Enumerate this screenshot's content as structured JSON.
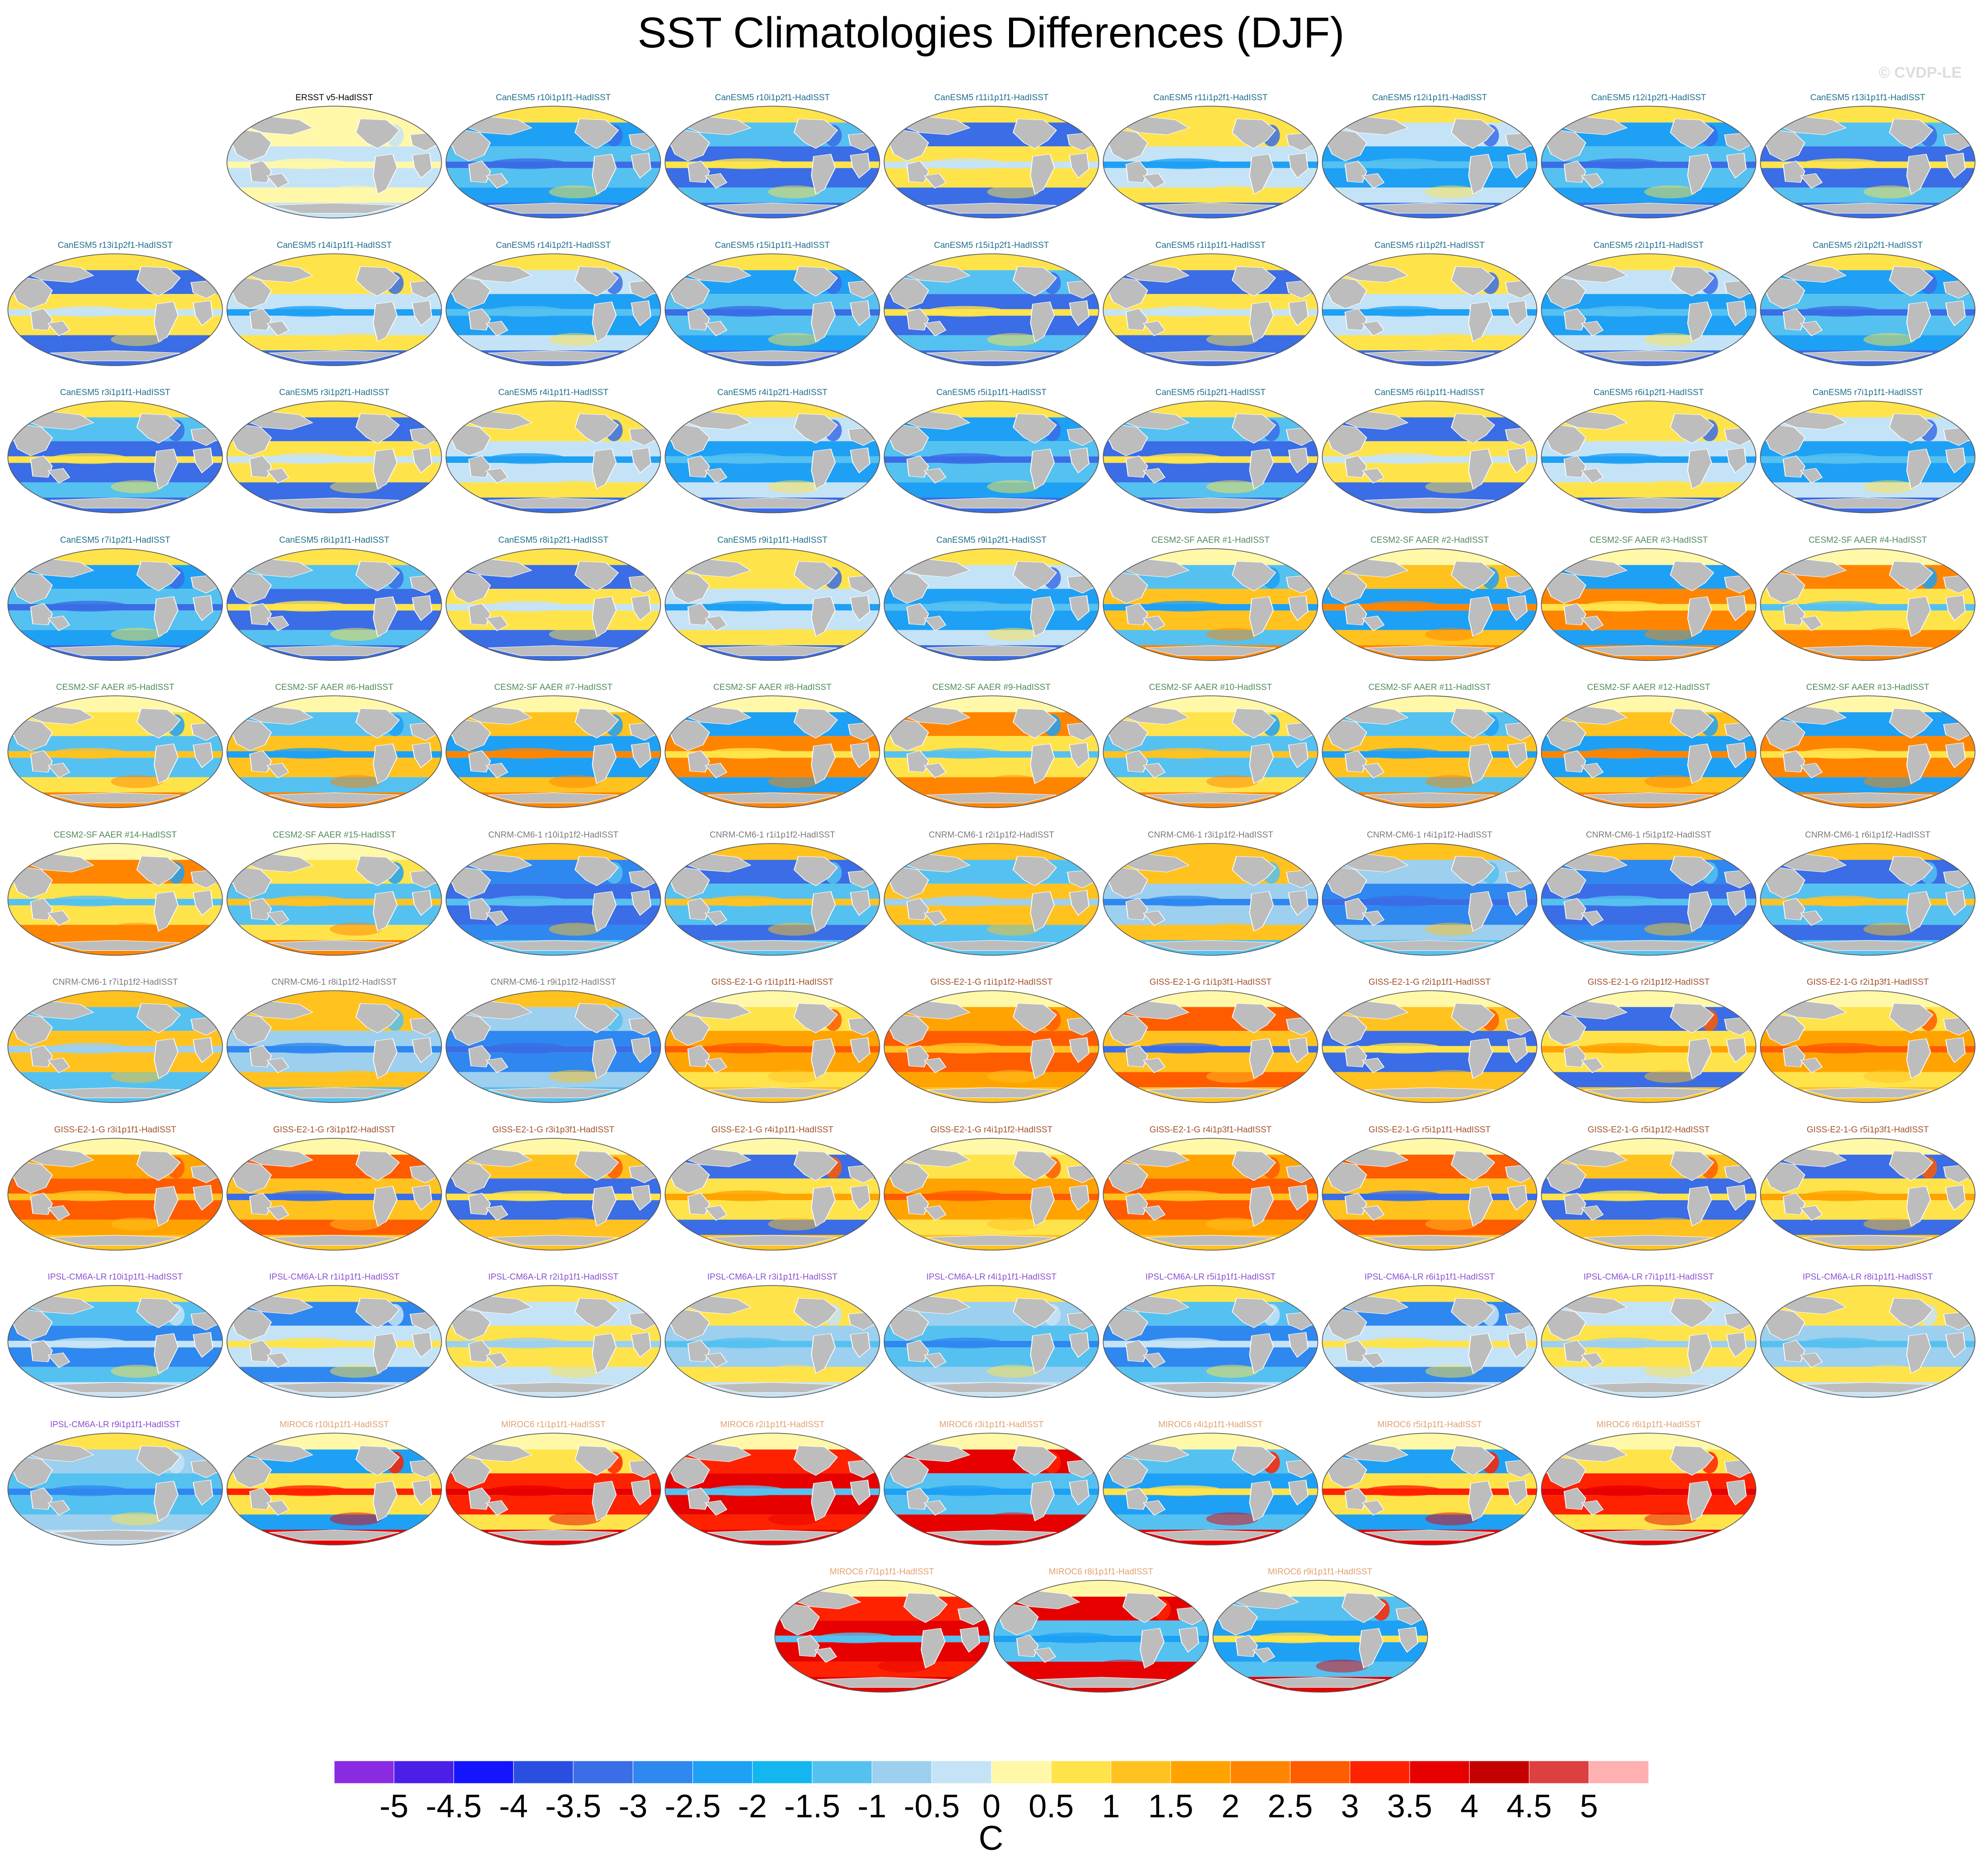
{
  "title": "SST Climatologies Differences (DJF)",
  "watermark": "© CVDP-LE",
  "chart_data": {
    "type": "heatmap",
    "title": "SST Climatologies Differences (DJF)",
    "colorbar": {
      "unit": "C",
      "ticks": [
        "-5",
        "-4.5",
        "-4",
        "-3.5",
        "-3",
        "-2.5",
        "-2",
        "-1.5",
        "-1",
        "-0.5",
        "0",
        "0.5",
        "1",
        "1.5",
        "2",
        "2.5",
        "3",
        "3.5",
        "4",
        "4.5",
        "5"
      ],
      "colors": [
        "#8a2be2",
        "#4b1fe8",
        "#1414ff",
        "#2a4fe0",
        "#3a6de6",
        "#2f87f0",
        "#1ea0f5",
        "#13b6ef",
        "#55c1f0",
        "#9dcfee",
        "#c5e3f6",
        "#fff8a8",
        "#ffe34a",
        "#ffc21f",
        "#ffa300",
        "#ff8500",
        "#ff5c00",
        "#ff2200",
        "#e60000",
        "#c40000",
        "#dd4040",
        "#ffb0b0"
      ]
    },
    "panels": [
      {
        "label": "ERSST v5-HadISST",
        "group": "ERSST"
      },
      {
        "label": "CanESM5 r10i1p1f1-HadISST",
        "group": "CanESM5"
      },
      {
        "label": "CanESM5 r10i1p2f1-HadISST",
        "group": "CanESM5"
      },
      {
        "label": "CanESM5 r11i1p1f1-HadISST",
        "group": "CanESM5"
      },
      {
        "label": "CanESM5 r11i1p2f1-HadISST",
        "group": "CanESM5"
      },
      {
        "label": "CanESM5 r12i1p1f1-HadISST",
        "group": "CanESM5"
      },
      {
        "label": "CanESM5 r12i1p2f1-HadISST",
        "group": "CanESM5"
      },
      {
        "label": "CanESM5 r13i1p1f1-HadISST",
        "group": "CanESM5"
      },
      {
        "label": "CanESM5 r13i1p2f1-HadISST",
        "group": "CanESM5"
      },
      {
        "label": "CanESM5 r14i1p1f1-HadISST",
        "group": "CanESM5"
      },
      {
        "label": "CanESM5 r14i1p2f1-HadISST",
        "group": "CanESM5"
      },
      {
        "label": "CanESM5 r15i1p1f1-HadISST",
        "group": "CanESM5"
      },
      {
        "label": "CanESM5 r15i1p2f1-HadISST",
        "group": "CanESM5"
      },
      {
        "label": "CanESM5 r1i1p1f1-HadISST",
        "group": "CanESM5"
      },
      {
        "label": "CanESM5 r1i1p2f1-HadISST",
        "group": "CanESM5"
      },
      {
        "label": "CanESM5 r2i1p1f1-HadISST",
        "group": "CanESM5"
      },
      {
        "label": "CanESM5 r2i1p2f1-HadISST",
        "group": "CanESM5"
      },
      {
        "label": "CanESM5 r3i1p1f1-HadISST",
        "group": "CanESM5"
      },
      {
        "label": "CanESM5 r3i1p2f1-HadISST",
        "group": "CanESM5"
      },
      {
        "label": "CanESM5 r4i1p1f1-HadISST",
        "group": "CanESM5"
      },
      {
        "label": "CanESM5 r4i1p2f1-HadISST",
        "group": "CanESM5"
      },
      {
        "label": "CanESM5 r5i1p1f1-HadISST",
        "group": "CanESM5"
      },
      {
        "label": "CanESM5 r5i1p2f1-HadISST",
        "group": "CanESM5"
      },
      {
        "label": "CanESM5 r6i1p1f1-HadISST",
        "group": "CanESM5"
      },
      {
        "label": "CanESM5 r6i1p2f1-HadISST",
        "group": "CanESM5"
      },
      {
        "label": "CanESM5 r7i1p1f1-HadISST",
        "group": "CanESM5"
      },
      {
        "label": "CanESM5 r7i1p2f1-HadISST",
        "group": "CanESM5"
      },
      {
        "label": "CanESM5 r8i1p1f1-HadISST",
        "group": "CanESM5"
      },
      {
        "label": "CanESM5 r8i1p2f1-HadISST",
        "group": "CanESM5"
      },
      {
        "label": "CanESM5 r9i1p1f1-HadISST",
        "group": "CanESM5"
      },
      {
        "label": "CanESM5 r9i1p2f1-HadISST",
        "group": "CanESM5"
      },
      {
        "label": "CESM2-SF AAER #1-HadISST",
        "group": "CESM2"
      },
      {
        "label": "CESM2-SF AAER #2-HadISST",
        "group": "CESM2"
      },
      {
        "label": "CESM2-SF AAER #3-HadISST",
        "group": "CESM2"
      },
      {
        "label": "CESM2-SF AAER #4-HadISST",
        "group": "CESM2"
      },
      {
        "label": "CESM2-SF AAER #5-HadISST",
        "group": "CESM2"
      },
      {
        "label": "CESM2-SF AAER #6-HadISST",
        "group": "CESM2"
      },
      {
        "label": "CESM2-SF AAER #7-HadISST",
        "group": "CESM2"
      },
      {
        "label": "CESM2-SF AAER #8-HadISST",
        "group": "CESM2"
      },
      {
        "label": "CESM2-SF AAER #9-HadISST",
        "group": "CESM2"
      },
      {
        "label": "CESM2-SF AAER #10-HadISST",
        "group": "CESM2"
      },
      {
        "label": "CESM2-SF AAER #11-HadISST",
        "group": "CESM2"
      },
      {
        "label": "CESM2-SF AAER #12-HadISST",
        "group": "CESM2"
      },
      {
        "label": "CESM2-SF AAER #13-HadISST",
        "group": "CESM2"
      },
      {
        "label": "CESM2-SF AAER #14-HadISST",
        "group": "CESM2"
      },
      {
        "label": "CESM2-SF AAER #15-HadISST",
        "group": "CESM2"
      },
      {
        "label": "CNRM-CM6-1 r10i1p1f2-HadISST",
        "group": "CNRM"
      },
      {
        "label": "CNRM-CM6-1 r1i1p1f2-HadISST",
        "group": "CNRM"
      },
      {
        "label": "CNRM-CM6-1 r2i1p1f2-HadISST",
        "group": "CNRM"
      },
      {
        "label": "CNRM-CM6-1 r3i1p1f2-HadISST",
        "group": "CNRM"
      },
      {
        "label": "CNRM-CM6-1 r4i1p1f2-HadISST",
        "group": "CNRM"
      },
      {
        "label": "CNRM-CM6-1 r5i1p1f2-HadISST",
        "group": "CNRM"
      },
      {
        "label": "CNRM-CM6-1 r6i1p1f2-HadISST",
        "group": "CNRM"
      },
      {
        "label": "CNRM-CM6-1 r7i1p1f2-HadISST",
        "group": "CNRM"
      },
      {
        "label": "CNRM-CM6-1 r8i1p1f2-HadISST",
        "group": "CNRM"
      },
      {
        "label": "CNRM-CM6-1 r9i1p1f2-HadISST",
        "group": "CNRM"
      },
      {
        "label": "GISS-E2-1-G r1i1p1f1-HadISST",
        "group": "GISS"
      },
      {
        "label": "GISS-E2-1-G r1i1p1f2-HadISST",
        "group": "GISS"
      },
      {
        "label": "GISS-E2-1-G r1i1p3f1-HadISST",
        "group": "GISS"
      },
      {
        "label": "GISS-E2-1-G r2i1p1f1-HadISST",
        "group": "GISS"
      },
      {
        "label": "GISS-E2-1-G r2i1p1f2-HadISST",
        "group": "GISS"
      },
      {
        "label": "GISS-E2-1-G r2i1p3f1-HadISST",
        "group": "GISS"
      },
      {
        "label": "GISS-E2-1-G r3i1p1f1-HadISST",
        "group": "GISS"
      },
      {
        "label": "GISS-E2-1-G r3i1p1f2-HadISST",
        "group": "GISS"
      },
      {
        "label": "GISS-E2-1-G r3i1p3f1-HadISST",
        "group": "GISS"
      },
      {
        "label": "GISS-E2-1-G r4i1p1f1-HadISST",
        "group": "GISS"
      },
      {
        "label": "GISS-E2-1-G r4i1p1f2-HadISST",
        "group": "GISS"
      },
      {
        "label": "GISS-E2-1-G r4i1p3f1-HadISST",
        "group": "GISS"
      },
      {
        "label": "GISS-E2-1-G r5i1p1f1-HadISST",
        "group": "GISS"
      },
      {
        "label": "GISS-E2-1-G r5i1p1f2-HadISST",
        "group": "GISS"
      },
      {
        "label": "GISS-E2-1-G r5i1p3f1-HadISST",
        "group": "GISS"
      },
      {
        "label": "IPSL-CM6A-LR r10i1p1f1-HadISST",
        "group": "IPSL"
      },
      {
        "label": "IPSL-CM6A-LR r1i1p1f1-HadISST",
        "group": "IPSL"
      },
      {
        "label": "IPSL-CM6A-LR r2i1p1f1-HadISST",
        "group": "IPSL"
      },
      {
        "label": "IPSL-CM6A-LR r3i1p1f1-HadISST",
        "group": "IPSL"
      },
      {
        "label": "IPSL-CM6A-LR r4i1p1f1-HadISST",
        "group": "IPSL"
      },
      {
        "label": "IPSL-CM6A-LR r5i1p1f1-HadISST",
        "group": "IPSL"
      },
      {
        "label": "IPSL-CM6A-LR r6i1p1f1-HadISST",
        "group": "IPSL"
      },
      {
        "label": "IPSL-CM6A-LR r7i1p1f1-HadISST",
        "group": "IPSL"
      },
      {
        "label": "IPSL-CM6A-LR r8i1p1f1-HadISST",
        "group": "IPSL"
      },
      {
        "label": "IPSL-CM6A-LR r9i1p1f1-HadISST",
        "group": "IPSL"
      },
      {
        "label": "MIROC6 r10i1p1f1-HadISST",
        "group": "MIROC6"
      },
      {
        "label": "MIROC6 r1i1p1f1-HadISST",
        "group": "MIROC6"
      },
      {
        "label": "MIROC6 r2i1p1f1-HadISST",
        "group": "MIROC6"
      },
      {
        "label": "MIROC6 r3i1p1f1-HadISST",
        "group": "MIROC6"
      },
      {
        "label": "MIROC6 r4i1p1f1-HadISST",
        "group": "MIROC6"
      },
      {
        "label": "MIROC6 r5i1p1f1-HadISST",
        "group": "MIROC6"
      },
      {
        "label": "MIROC6 r6i1p1f1-HadISST",
        "group": "MIROC6"
      },
      {
        "label": "MIROC6 r7i1p1f1-HadISST",
        "group": "MIROC6"
      },
      {
        "label": "MIROC6 r8i1p1f1-HadISST",
        "group": "MIROC6"
      },
      {
        "label": "MIROC6 r9i1p1f1-HadISST",
        "group": "MIROC6"
      }
    ],
    "groups": {
      "ERSST": {
        "label_color": "#000000",
        "colors": [
          "#fff8a8",
          "#c5e3f6",
          "#fff8a8",
          "#c5e3f6",
          "#fff8a8"
        ]
      },
      "CanESM5": {
        "label_color": "#1f6f8b",
        "colors": [
          "#c5e3f6",
          "#1ea0f5",
          "#55c1f0",
          "#3a6de6",
          "#ffe34a"
        ]
      },
      "CESM2": {
        "label_color": "#4f8a5a",
        "colors": [
          "#ffe34a",
          "#55c1f0",
          "#ffc21f",
          "#1ea0f5",
          "#ff8500"
        ]
      },
      "CNRM": {
        "label_color": "#7a7a7a",
        "colors": [
          "#9dcfee",
          "#2f87f0",
          "#3a6de6",
          "#55c1f0",
          "#ffc21f"
        ]
      },
      "GISS": {
        "label_color": "#a0522d",
        "colors": [
          "#3a6de6",
          "#ffe34a",
          "#ffa300",
          "#ff5c00",
          "#ffc21f"
        ]
      },
      "IPSL": {
        "label_color": "#8a4fd0",
        "colors": [
          "#9dcfee",
          "#55c1f0",
          "#2f87f0",
          "#c5e3f6",
          "#ffe34a"
        ]
      },
      "MIROC6": {
        "label_color": "#e0a070",
        "colors": [
          "#55c1f0",
          "#1ea0f5",
          "#ffe34a",
          "#ff2200",
          "#e60000"
        ]
      }
    }
  }
}
